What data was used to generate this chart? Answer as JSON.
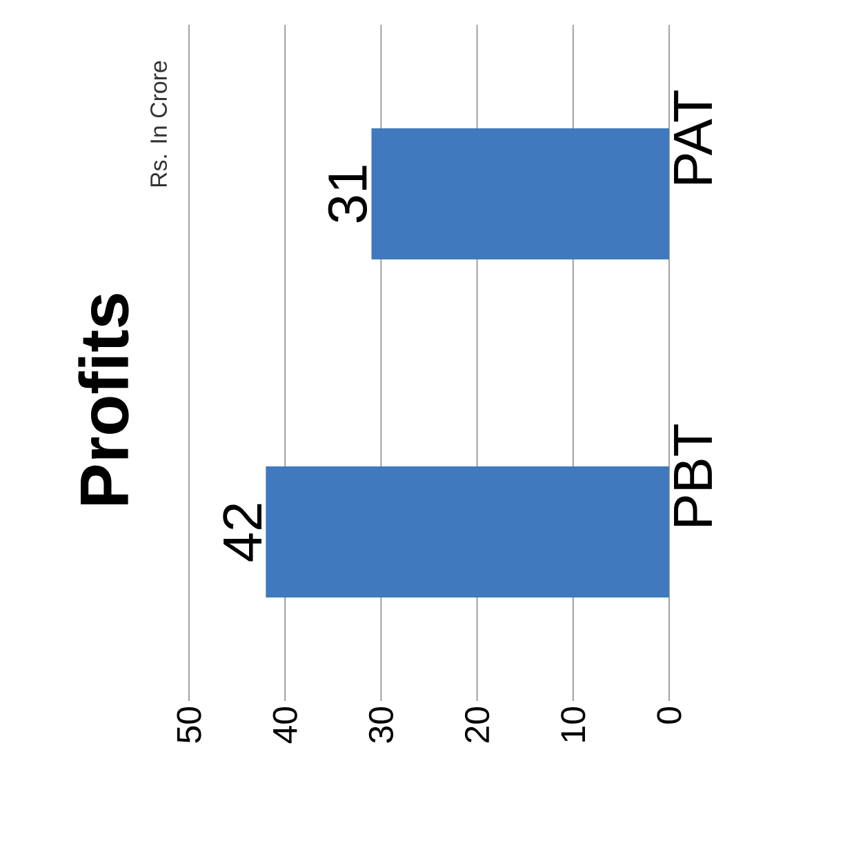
{
  "chart_data": {
    "type": "bar",
    "orientation": "horizontal",
    "title": "Profits",
    "annotations": [
      "Rs. In Crore"
    ],
    "categories": [
      "PAT",
      "PBT"
    ],
    "values": [
      31,
      42
    ],
    "color": "#4079bd",
    "xlim": [
      50,
      0
    ],
    "xticks": [
      0,
      10,
      20,
      30,
      40,
      50
    ],
    "grid": "x",
    "data_labels": true
  }
}
